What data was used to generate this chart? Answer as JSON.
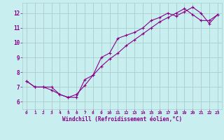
{
  "title": "",
  "xlabel": "Windchill (Refroidissement éolien,°C)",
  "ylabel": "",
  "bg_color": "#c8eef0",
  "line_color": "#880088",
  "grid_color": "#aacccc",
  "xlim": [
    -0.5,
    23.5
  ],
  "ylim": [
    5.5,
    12.7
  ],
  "xticks": [
    0,
    1,
    2,
    3,
    4,
    5,
    6,
    7,
    8,
    9,
    10,
    11,
    12,
    13,
    14,
    15,
    16,
    17,
    18,
    19,
    20,
    21,
    22,
    23
  ],
  "yticks": [
    6,
    7,
    8,
    9,
    10,
    11,
    12
  ],
  "series1_x": [
    0,
    1,
    2,
    3,
    4,
    5,
    6,
    7,
    8,
    9,
    10,
    11,
    12,
    13,
    14,
    15,
    16,
    17,
    18,
    19,
    20,
    21,
    22,
    23
  ],
  "series1_y": [
    7.4,
    7.0,
    7.0,
    7.0,
    6.5,
    6.3,
    6.3,
    7.5,
    7.8,
    9.0,
    9.3,
    10.3,
    10.5,
    10.7,
    11.0,
    11.5,
    11.7,
    12.0,
    11.8,
    12.1,
    12.4,
    12.0,
    11.3,
    11.9
  ],
  "series2_x": [
    0,
    1,
    2,
    3,
    4,
    5,
    6,
    7,
    8,
    9,
    10,
    11,
    12,
    13,
    14,
    15,
    16,
    17,
    18,
    19,
    20,
    21,
    22,
    23
  ],
  "series2_y": [
    7.4,
    7.0,
    7.0,
    6.8,
    6.5,
    6.3,
    6.5,
    7.1,
    7.8,
    8.4,
    8.9,
    9.3,
    9.8,
    10.2,
    10.6,
    11.0,
    11.4,
    11.7,
    12.0,
    12.3,
    11.9,
    11.5,
    11.5,
    11.9
  ]
}
